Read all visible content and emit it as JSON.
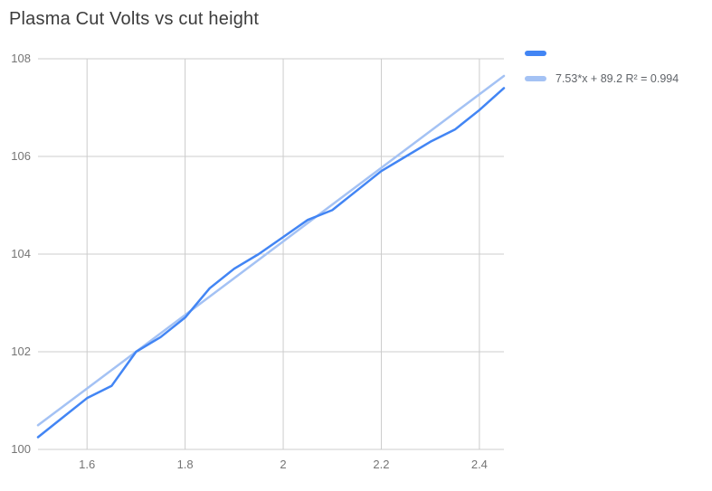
{
  "chart_data": {
    "type": "line",
    "title": "Plasma Cut Volts vs cut height",
    "xlabel": "",
    "ylabel": "",
    "xlim": [
      1.5,
      2.45
    ],
    "ylim": [
      100,
      108
    ],
    "x_tick_labels": [
      "1.6",
      "1.8",
      "2",
      "2.2",
      "2.4"
    ],
    "y_tick_labels": [
      "100",
      "102",
      "104",
      "106",
      "108"
    ],
    "grid": true,
    "legend_position": "top-right",
    "colors": {
      "series": "#4285f4",
      "trendline": "#a4c2f4",
      "gridline": "#cccccc",
      "tick_text": "#757575",
      "title_text": "#3c3c3c",
      "legend_text": "#5f6368"
    },
    "series": [
      {
        "color": "#4285f4",
        "x": [
          1.5,
          1.55,
          1.6,
          1.65,
          1.7,
          1.75,
          1.8,
          1.85,
          1.9,
          1.95,
          2.0,
          2.05,
          2.1,
          2.15,
          2.2,
          2.25,
          2.3,
          2.35,
          2.4,
          2.45
        ],
        "y": [
          100.25,
          100.65,
          101.05,
          101.3,
          102.0,
          102.3,
          102.7,
          103.3,
          103.7,
          104.0,
          104.35,
          104.7,
          104.9,
          105.3,
          105.7,
          106.0,
          106.3,
          106.55,
          106.95,
          107.4
        ]
      }
    ],
    "trendline": {
      "slope": 7.53,
      "intercept": 89.2,
      "r_squared": 0.994,
      "label": "7.53*x + 89.2 R² = 0.994",
      "color": "#a4c2f4"
    }
  }
}
